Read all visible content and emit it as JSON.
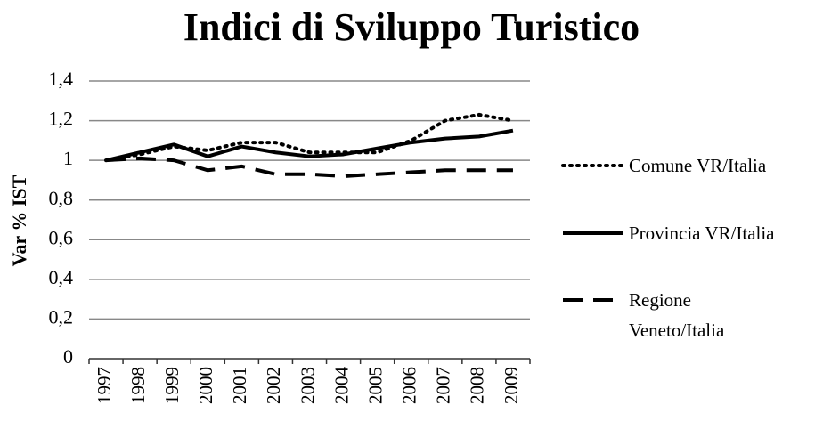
{
  "chart_data": {
    "type": "line",
    "title": "Indici di Sviluppo Turistico",
    "y_label": "Var % IST",
    "categories": [
      "1997",
      "1998",
      "1999",
      "2000",
      "2001",
      "2002",
      "2003",
      "2004",
      "2005",
      "2006",
      "2007",
      "2008",
      "2009"
    ],
    "series": [
      {
        "name": "Comune VR/Italia",
        "color": "#000000",
        "dash": "dotted",
        "values": [
          1.0,
          1.03,
          1.07,
          1.05,
          1.09,
          1.09,
          1.04,
          1.04,
          1.04,
          1.1,
          1.2,
          1.23,
          1.2
        ]
      },
      {
        "name": "Provincia VR/Italia",
        "color": "#000000",
        "dash": "solid",
        "values": [
          1.0,
          1.04,
          1.08,
          1.02,
          1.07,
          1.04,
          1.02,
          1.03,
          1.06,
          1.09,
          1.11,
          1.12,
          1.15
        ]
      },
      {
        "name": "Regione Veneto/Italia",
        "color": "#000000",
        "dash": "dashed",
        "values": [
          1.0,
          1.01,
          1.0,
          0.95,
          0.97,
          0.93,
          0.93,
          0.92,
          0.93,
          0.94,
          0.95,
          0.95,
          0.95
        ]
      }
    ],
    "ylim": [
      0,
      1.4
    ],
    "yticks": [
      0,
      {
        "value": 0.2,
        "label": "0,2"
      },
      {
        "value": 0.4,
        "label": "0,4"
      },
      {
        "value": 0.6,
        "label": "0,6"
      },
      {
        "value": 0.8,
        "label": "0,8"
      },
      1,
      {
        "value": 1.2,
        "label": "1,2"
      },
      {
        "value": 1.4,
        "label": "1,4"
      }
    ],
    "grid": true,
    "legend": "right"
  }
}
